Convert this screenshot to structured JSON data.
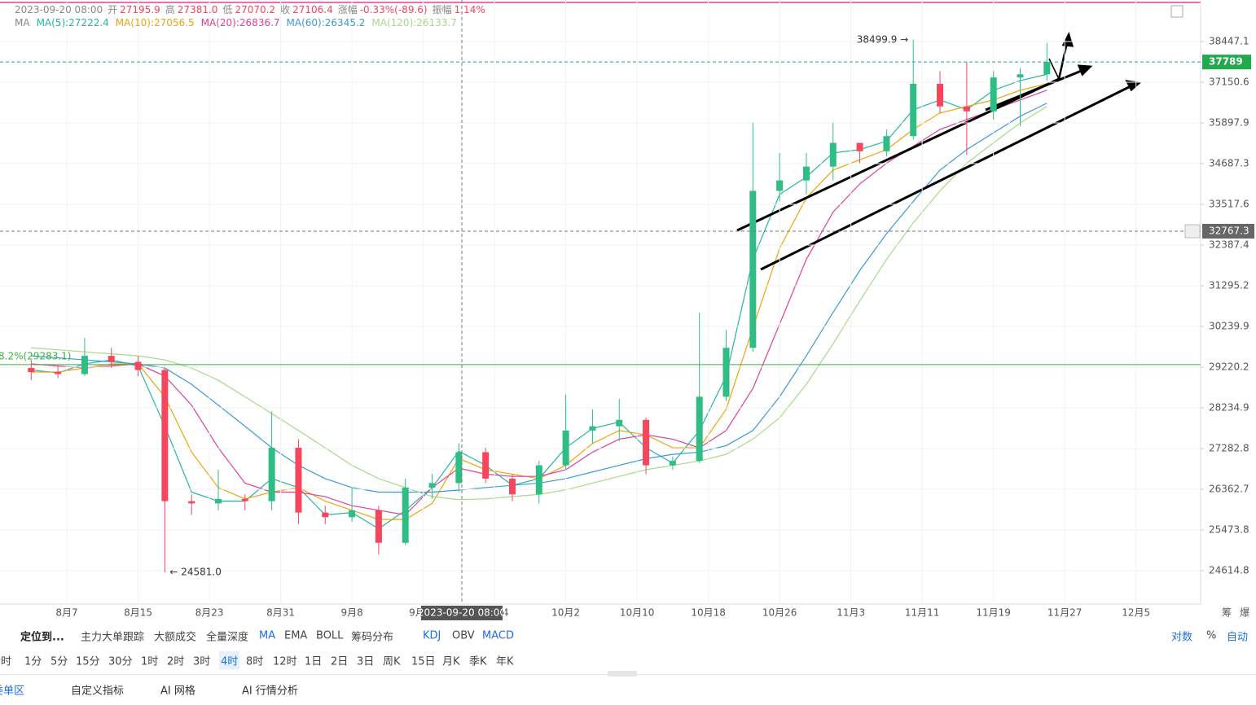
{
  "chart_data": {
    "type": "candlestick",
    "log_scale": true,
    "header": {
      "time": "2023-09-20 08:00",
      "fields": [
        {
          "label": "开",
          "value": "27195.9"
        },
        {
          "label": "高",
          "value": "27381.0"
        },
        {
          "label": "低",
          "value": "27070.2"
        },
        {
          "label": "收",
          "value": "27106.4"
        },
        {
          "label": "涨幅",
          "value": "-0.33%(-89.6)"
        },
        {
          "label": "振幅",
          "value": "1.14%"
        }
      ]
    },
    "ma_label": "MA",
    "x": [
      "2023-08-03T00:00",
      "2023-08-06T00:00",
      "2023-08-09T00:00",
      "2023-08-12T00:00",
      "2023-08-15T00:00",
      "2023-08-18T00:00",
      "2023-08-21T00:00",
      "2023-08-24T00:00",
      "2023-08-27T00:00",
      "2023-08-30T00:00",
      "2023-09-02T00:00",
      "2023-09-05T00:00",
      "2023-09-08T00:00",
      "2023-09-11T00:00",
      "2023-09-14T00:00",
      "2023-09-17T00:00",
      "2023-09-20T00:00",
      "2023-09-23T00:00",
      "2023-09-26T00:00",
      "2023-09-29T00:00",
      "2023-10-02T00:00",
      "2023-10-05T00:00",
      "2023-10-08T00:00",
      "2023-10-11T00:00",
      "2023-10-14T00:00",
      "2023-10-17T00:00",
      "2023-10-20T00:00",
      "2023-10-23T00:00",
      "2023-10-26T00:00",
      "2023-10-29T00:00",
      "2023-11-01T00:00",
      "2023-11-04T00:00",
      "2023-11-07T00:00",
      "2023-11-10T00:00",
      "2023-11-13T00:00",
      "2023-11-16T00:00",
      "2023-11-19T00:00",
      "2023-11-22T00:00",
      "2023-11-25T00:00"
    ],
    "open": [
      29200,
      29100,
      29050,
      29500,
      29350,
      29150,
      26100,
      26050,
      26150,
      26100,
      27300,
      25850,
      25750,
      25900,
      25200,
      26400,
      26500,
      27200,
      26600,
      26250,
      26900,
      27700,
      27800,
      27950,
      26900,
      27000,
      28500,
      29700,
      33900,
      34200,
      34600,
      35300,
      35050,
      35500,
      37100,
      36400,
      36250,
      37300,
      37400
    ],
    "high": [
      29400,
      29250,
      29950,
      29700,
      29500,
      29200,
      26250,
      26800,
      26250,
      28150,
      27500,
      26000,
      26400,
      26000,
      26600,
      26700,
      27400,
      27300,
      26700,
      27000,
      28550,
      28200,
      28450,
      28000,
      27100,
      30600,
      30150,
      35900,
      35000,
      35000,
      35900,
      35300,
      35700,
      38499.9,
      37500,
      37800,
      37500,
      37600,
      38400
    ],
    "low": [
      28900,
      28950,
      29000,
      29200,
      29000,
      24581.0,
      25800,
      25900,
      25900,
      25900,
      25600,
      25600,
      25650,
      24950,
      25150,
      26150,
      26300,
      26500,
      26100,
      26050,
      26800,
      27400,
      27450,
      26700,
      26800,
      26950,
      28400,
      29600,
      33600,
      33800,
      34200,
      34700,
      34900,
      35400,
      36200,
      34950,
      36000,
      35800,
      37200
    ],
    "close": [
      29100,
      29050,
      29500,
      29350,
      29150,
      26100,
      26050,
      26150,
      26100,
      27300,
      25850,
      25750,
      25900,
      25200,
      26400,
      26500,
      27200,
      26600,
      26250,
      26900,
      27700,
      27800,
      27950,
      26900,
      27000,
      28500,
      29700,
      33900,
      34200,
      34600,
      35300,
      35050,
      35500,
      37100,
      36400,
      36250,
      37300,
      37400,
      37789.0
    ],
    "up_color": "#2ebd85",
    "down_color": "#f6465d",
    "series": [
      {
        "name": "MA(5):27222.4",
        "color": "#26b5a5",
        "values": [
          29150,
          29080,
          29300,
          29400,
          29250,
          27800,
          26300,
          26100,
          26100,
          26600,
          26400,
          25800,
          25850,
          25500,
          25900,
          26400,
          27222.4,
          26900,
          26450,
          26600,
          27300,
          27750,
          27900,
          27300,
          26950,
          27700,
          29000,
          32000,
          33800,
          34300,
          35000,
          35100,
          35350,
          36300,
          36600,
          36300,
          36900,
          37200,
          37400
        ]
      },
      {
        "name": "MA(10):27056.5",
        "color": "#f0a30a",
        "values": [
          29100,
          29100,
          29200,
          29300,
          29300,
          28500,
          27200,
          26400,
          26150,
          26300,
          26400,
          26100,
          25900,
          25700,
          25700,
          26050,
          27056.5,
          26800,
          26700,
          26600,
          26900,
          27400,
          27700,
          27600,
          27300,
          27300,
          28200,
          30200,
          32300,
          33700,
          34500,
          34800,
          35100,
          35700,
          36200,
          36400,
          36600,
          36900,
          37100
        ]
      },
      {
        "name": "MA(20):26836.7",
        "color": "#e0409a",
        "values": [
          29300,
          29250,
          29200,
          29250,
          29300,
          29000,
          28300,
          27300,
          26500,
          26300,
          26300,
          26200,
          26000,
          25900,
          25800,
          26400,
          26836.7,
          26700,
          26650,
          26650,
          26800,
          27200,
          27500,
          27600,
          27500,
          27300,
          27700,
          28700,
          30300,
          32000,
          33300,
          34100,
          34700,
          35200,
          35700,
          36000,
          36300,
          36600,
          36900
        ]
      },
      {
        "name": "MA(60):26345.2",
        "color": "#3a9ad9",
        "values": [
          29500,
          29450,
          29400,
          29350,
          29300,
          29200,
          28800,
          28300,
          27800,
          27300,
          26900,
          26600,
          26400,
          26300,
          26300,
          26300,
          26345.2,
          26400,
          26450,
          26500,
          26600,
          26750,
          26900,
          27050,
          27150,
          27200,
          27350,
          27700,
          28500,
          29500,
          30600,
          31700,
          32700,
          33600,
          34500,
          35100,
          35600,
          36100,
          36500
        ]
      },
      {
        "name": "MA(120):26133.7",
        "color": "#a8d88a",
        "values": [
          29700,
          29650,
          29600,
          29550,
          29500,
          29400,
          29200,
          28900,
          28500,
          28100,
          27700,
          27300,
          26900,
          26600,
          26400,
          26200,
          26133.7,
          26150,
          26200,
          26250,
          26350,
          26500,
          26650,
          26800,
          26900,
          27000,
          27150,
          27500,
          28000,
          28800,
          29800,
          30900,
          32000,
          33000,
          33900,
          34700,
          35300,
          35900,
          36400
        ]
      }
    ],
    "xlim": [
      "2023-07-30T12:00",
      "2023-12-12T06:00"
    ],
    "xticks": [
      {
        "value": "2023-08-07T00:00",
        "label": "8月7"
      },
      {
        "value": "2023-08-15T00:00",
        "label": "8月15"
      },
      {
        "value": "2023-08-23T00:00",
        "label": "8月23"
      },
      {
        "value": "2023-08-31T00:00",
        "label": "8月31"
      },
      {
        "value": "2023-09-08T00:00",
        "label": "9月8"
      },
      {
        "value": "2023-09-16T00:00",
        "label": "9月16"
      },
      {
        "value": "2023-09-24T00:00",
        "label": "9月24"
      },
      {
        "value": "2023-10-02T00:00",
        "label": "10月2"
      },
      {
        "value": "2023-10-10T00:00",
        "label": "10月10"
      },
      {
        "value": "2023-10-18T00:00",
        "label": "10月18"
      },
      {
        "value": "2023-10-26T00:00",
        "label": "10月26"
      },
      {
        "value": "2023-11-03T00:00",
        "label": "11月3"
      },
      {
        "value": "2023-11-11T00:00",
        "label": "11月11"
      },
      {
        "value": "2023-11-19T00:00",
        "label": "11月19"
      },
      {
        "value": "2023-11-27T00:00",
        "label": "11月27"
      },
      {
        "value": "2023-12-05T00:00",
        "label": "12月5"
      }
    ],
    "ylim": [
      23932,
      39816
    ],
    "yticks": [
      38447.1,
      37150.6,
      35897.9,
      34687.3,
      33517.6,
      32387.4,
      31295.2,
      30239.9,
      29220.2,
      28234.9,
      27282.8,
      26362.7,
      25473.8,
      24614.8
    ],
    "grid": true,
    "last_price": 37789.0,
    "crosshair": {
      "x": {
        "value": "2023-09-20T08:00",
        "label": "2023-09-20 08:00"
      },
      "y": 32767.3
    },
    "fib": {
      "value": 29283.1,
      "label": "8.2%(29283.1)"
    },
    "high_marker": {
      "x": "2023-11-10T00:00",
      "value": 38499.9,
      "label": "38499.9 →"
    },
    "low_marker": {
      "x": "2023-08-18T00:00",
      "value": 24581.0,
      "label": "← 24581.0"
    }
  },
  "axis_corner": [
    "筹",
    "爆"
  ],
  "toolbar": {
    "locate": "定位到...",
    "tools": [
      "主力大单跟踪",
      "大额成交",
      "全量深度"
    ],
    "indicators": [
      "MA",
      "EMA",
      "BOLL",
      "筹码分布"
    ],
    "sub_indicators": [
      "KDJ",
      "OBV",
      "MACD"
    ],
    "right": [
      "对数",
      "%",
      "自动"
    ]
  },
  "intervals": {
    "items": [
      "分时",
      "1分",
      "5分",
      "15分",
      "30分",
      "1时",
      "2时",
      "3时",
      "4时",
      "8时",
      "12时",
      "1日",
      "2日",
      "3日",
      "周K",
      "15日",
      "月K",
      "季K",
      "年K"
    ],
    "selected": "4时"
  },
  "tabs": [
    "委单区",
    "自定义指标",
    "AI 网格",
    "AI 行情分析"
  ]
}
